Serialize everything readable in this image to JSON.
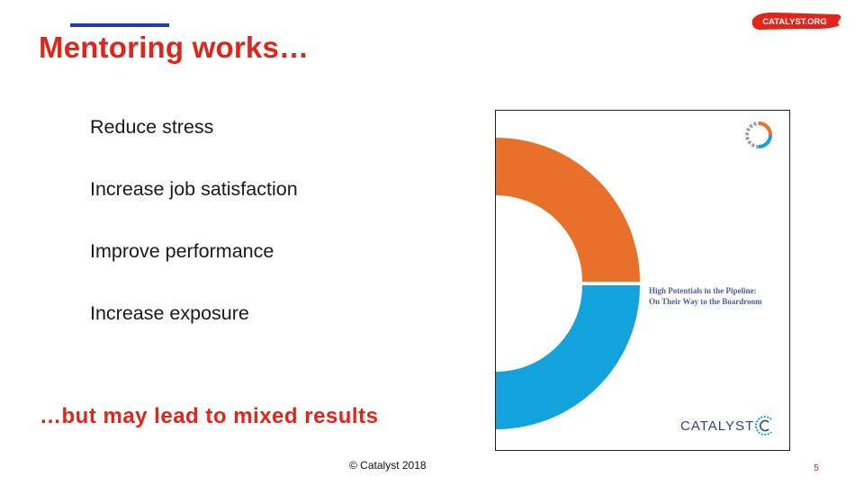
{
  "slide": {
    "title": "Mentoring works…",
    "bullets": [
      "Reduce stress",
      "Increase job satisfaction",
      "Improve performance",
      "Increase exposure"
    ],
    "tagline": "…but may lead to mixed results",
    "copyright": "© Catalyst 2018",
    "page_number": "5"
  },
  "brand": {
    "logo_text": "CATALYST.ORG",
    "logo_icon": "red-brush-stroke-logo",
    "accent_red": "#e1251b",
    "title_bar_blue": "#1f3fa7"
  },
  "report_cover": {
    "title_line1": "High Potentials in the Pipeline:",
    "title_line2": "On Their Way to the Boardroom",
    "publisher": "CATALYST",
    "colors": {
      "orange": "#e8702a",
      "blue": "#13a3dc",
      "gray": "#9aa0a6"
    }
  }
}
